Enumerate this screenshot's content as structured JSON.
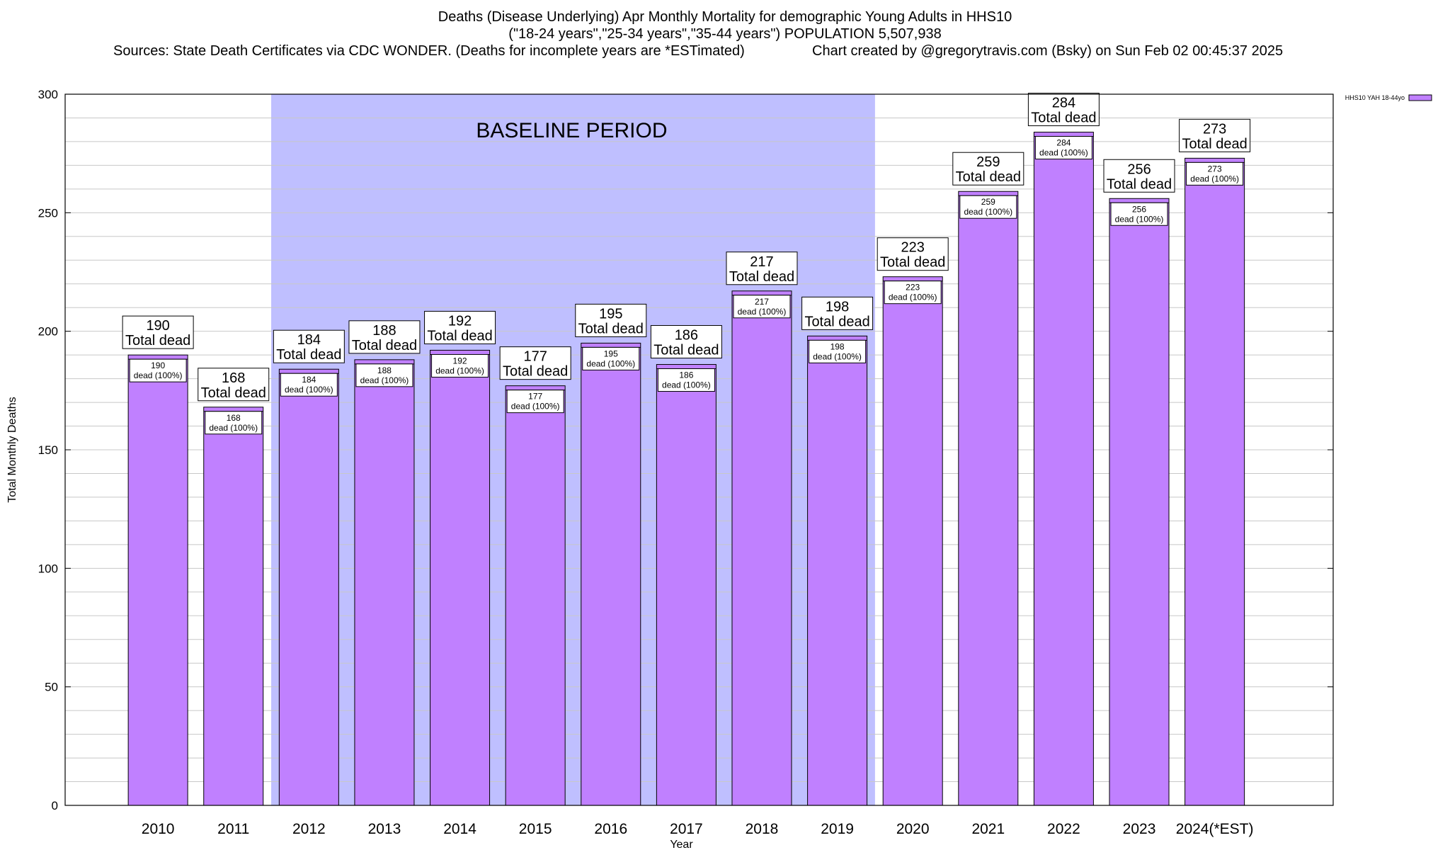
{
  "titles": {
    "line1": "Deaths (Disease Underlying) Apr Monthly Mortality for demographic Young Adults in HHS10",
    "line2": "(\"18-24 years\",\"25-34 years\",\"35-44 years\") POPULATION 5,507,938",
    "sources": "Sources: State Death Certificates via CDC WONDER. (Deaths for incomplete years are *ESTimated)",
    "credit": "Chart created by @gregorytravis.com (Bsky) on Sun Feb 02 00:45:37 2025"
  },
  "chart_data": {
    "type": "bar",
    "title": "Deaths (Disease Underlying) Apr Monthly Mortality for demographic Young Adults in HHS10",
    "xlabel": "Year",
    "ylabel": "Total Monthly Deaths",
    "ylim": [
      0,
      300
    ],
    "yticks": [
      0,
      50,
      100,
      150,
      200,
      250,
      300
    ],
    "minor_grid_step": 10,
    "grid": true,
    "legend": {
      "label": "HHS10 YAH 18-44yo",
      "placement": "top-right",
      "color": "#c080ff"
    },
    "categories": [
      "2010",
      "2011",
      "2012",
      "2013",
      "2014",
      "2015",
      "2016",
      "2017",
      "2018",
      "2019",
      "2020",
      "2021",
      "2022",
      "2023",
      "2024(*EST)"
    ],
    "series": [
      {
        "name": "HHS10 YAH 18-44yo",
        "values": [
          190,
          168,
          184,
          188,
          192,
          177,
          195,
          186,
          217,
          198,
          223,
          259,
          284,
          256,
          273
        ]
      }
    ],
    "total_label_suffix": "Total dead",
    "inner_label_suffix": "dead (100%)",
    "baseline_period": {
      "label": "BASELINE PERIOD",
      "start": "2012",
      "end": "2019",
      "color": "#bfbfff"
    },
    "colors": {
      "bar": "#c080ff",
      "bar_stroke": "#000000",
      "baseline": "#bfbfff",
      "grid": "#c8c8c8"
    }
  }
}
